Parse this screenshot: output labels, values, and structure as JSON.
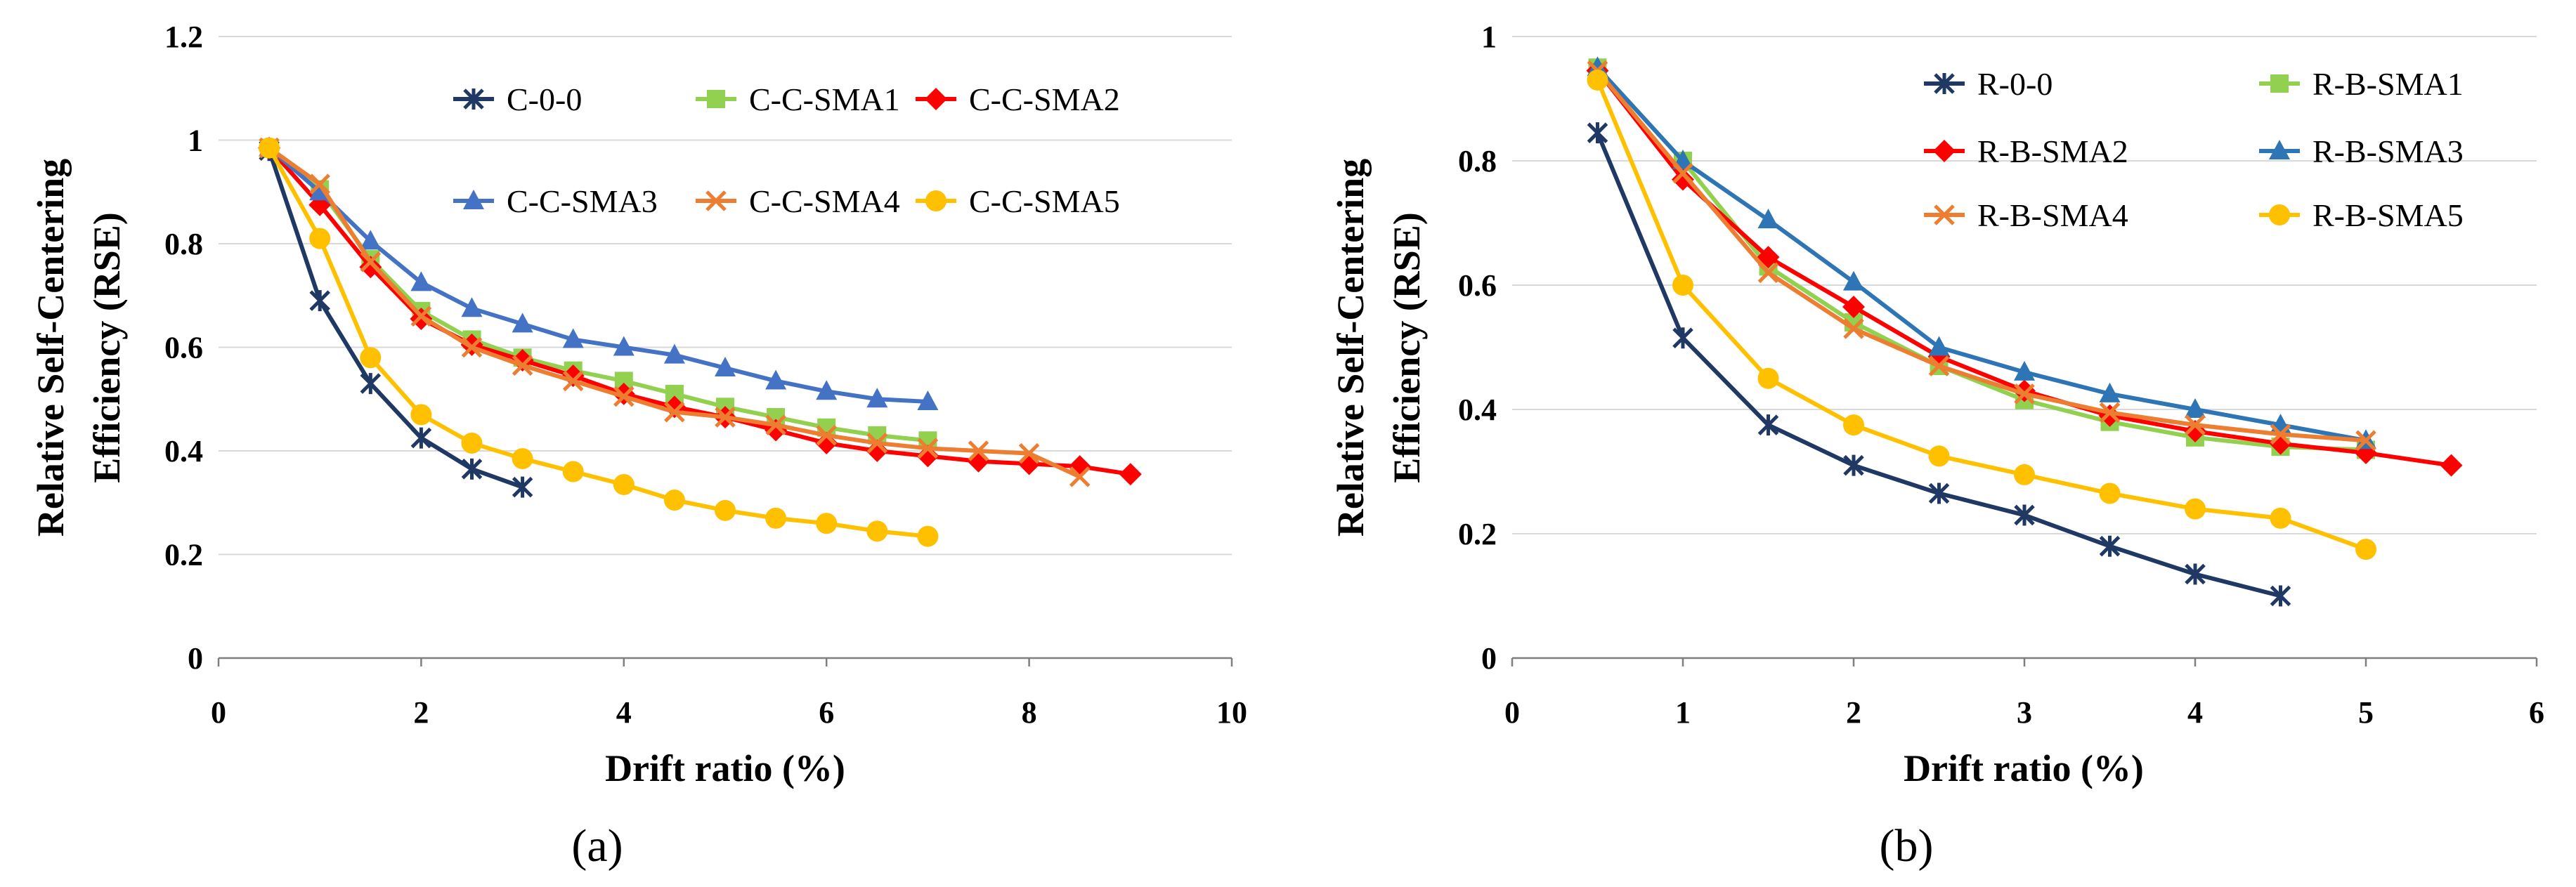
{
  "chart_data": [
    {
      "type": "line",
      "panel_label": "(a)",
      "xlabel": "Drift ratio (%)",
      "ylabel_line1": "Relative Self-Centering",
      "ylabel_line2": "Efficiency (RSE)",
      "xlim": [
        0,
        10
      ],
      "ylim": [
        0,
        1.2
      ],
      "xticks": [
        "0",
        "2",
        "4",
        "6",
        "8",
        "10"
      ],
      "yticks": [
        "0",
        "0.2",
        "0.4",
        "0.6",
        "0.8",
        "1",
        "1.2"
      ],
      "grid": "horizontal",
      "legend": "top-right",
      "series": [
        {
          "name": "C-0-0",
          "color": "#1f3864",
          "marker": "star",
          "x": [
            0.5,
            1,
            1.5,
            2,
            2.5,
            3
          ],
          "y": [
            0.98,
            0.69,
            0.53,
            0.425,
            0.365,
            0.33
          ]
        },
        {
          "name": "C-C-SMA1",
          "color": "#92d050",
          "marker": "square",
          "x": [
            0.5,
            1,
            1.5,
            2,
            2.5,
            3,
            3.5,
            4,
            4.5,
            5,
            5.5,
            6,
            6.5,
            7
          ],
          "y": [
            0.985,
            0.905,
            0.77,
            0.67,
            0.615,
            0.58,
            0.555,
            0.535,
            0.51,
            0.485,
            0.465,
            0.445,
            0.43,
            0.42
          ]
        },
        {
          "name": "C-C-SMA2",
          "color": "#ff0000",
          "marker": "diamond",
          "x": [
            0.5,
            1,
            1.5,
            2,
            2.5,
            3,
            3.5,
            4,
            4.5,
            5,
            5.5,
            6,
            6.5,
            7,
            7.5,
            8,
            8.5,
            9
          ],
          "y": [
            0.985,
            0.875,
            0.755,
            0.655,
            0.605,
            0.575,
            0.545,
            0.51,
            0.485,
            0.465,
            0.44,
            0.415,
            0.4,
            0.39,
            0.38,
            0.375,
            0.37,
            0.355
          ]
        },
        {
          "name": "C-C-SMA3",
          "color": "#4472c4",
          "marker": "triangle",
          "x": [
            0.5,
            1,
            1.5,
            2,
            2.5,
            3,
            3.5,
            4,
            4.5,
            5,
            5.5,
            6,
            6.5,
            7
          ],
          "y": [
            0.985,
            0.9,
            0.805,
            0.725,
            0.675,
            0.645,
            0.615,
            0.6,
            0.585,
            0.56,
            0.535,
            0.515,
            0.5,
            0.495
          ]
        },
        {
          "name": "C-C-SMA4",
          "color": "#ed7d31",
          "marker": "x",
          "x": [
            0.5,
            1,
            1.5,
            2,
            2.5,
            3,
            3.5,
            4,
            4.5,
            5,
            5.5,
            6,
            6.5,
            7,
            7.5,
            8,
            8.5
          ],
          "y": [
            0.985,
            0.915,
            0.765,
            0.66,
            0.6,
            0.565,
            0.535,
            0.505,
            0.475,
            0.465,
            0.45,
            0.43,
            0.415,
            0.405,
            0.4,
            0.395,
            0.35
          ]
        },
        {
          "name": "C-C-SMA5",
          "color": "#ffc000",
          "marker": "circle",
          "x": [
            0.5,
            1,
            1.5,
            2,
            2.5,
            3,
            3.5,
            4,
            4.5,
            5,
            5.5,
            6,
            6.5,
            7
          ],
          "y": [
            0.985,
            0.81,
            0.58,
            0.47,
            0.415,
            0.385,
            0.36,
            0.335,
            0.305,
            0.285,
            0.27,
            0.26,
            0.245,
            0.235
          ]
        }
      ]
    },
    {
      "type": "line",
      "panel_label": "(b)",
      "xlabel": "Drift ratio (%)",
      "ylabel_line1": "Relative Self-Centering",
      "ylabel_line2": "Efficiency (RSE)",
      "xlim": [
        0,
        6
      ],
      "ylim": [
        0,
        1
      ],
      "xticks": [
        "0",
        "1",
        "2",
        "3",
        "4",
        "5",
        "6"
      ],
      "yticks": [
        "0",
        "0.2",
        "0.4",
        "0.6",
        "0.8",
        "1"
      ],
      "grid": "horizontal",
      "legend": "top-right",
      "series": [
        {
          "name": "R-0-0",
          "color": "#1f3864",
          "marker": "star",
          "x": [
            0.5,
            1,
            1.5,
            2,
            2.5,
            3,
            3.5,
            4,
            4.5
          ],
          "y": [
            0.845,
            0.515,
            0.375,
            0.31,
            0.265,
            0.23,
            0.18,
            0.135,
            0.1
          ]
        },
        {
          "name": "R-B-SMA1",
          "color": "#92d050",
          "marker": "square",
          "x": [
            0.5,
            1,
            1.5,
            2,
            2.5,
            3,
            3.5,
            4,
            4.5,
            5
          ],
          "y": [
            0.95,
            0.8,
            0.63,
            0.54,
            0.47,
            0.415,
            0.38,
            0.355,
            0.34,
            0.335
          ]
        },
        {
          "name": "R-B-SMA2",
          "color": "#ff0000",
          "marker": "diamond",
          "x": [
            0.5,
            1,
            1.5,
            2,
            2.5,
            3,
            3.5,
            4,
            4.5,
            5,
            5.5
          ],
          "y": [
            0.945,
            0.77,
            0.645,
            0.565,
            0.485,
            0.43,
            0.39,
            0.365,
            0.345,
            0.33,
            0.31
          ]
        },
        {
          "name": "R-B-SMA3",
          "color": "#2e75b6",
          "marker": "triangle",
          "x": [
            0.5,
            1,
            1.5,
            2,
            2.5,
            3,
            3.5,
            4,
            4.5,
            5
          ],
          "y": [
            0.95,
            0.8,
            0.705,
            0.605,
            0.5,
            0.46,
            0.425,
            0.4,
            0.375,
            0.35
          ]
        },
        {
          "name": "R-B-SMA4",
          "color": "#ed7d31",
          "marker": "x",
          "x": [
            0.5,
            1,
            1.5,
            2,
            2.5,
            3,
            3.5,
            4,
            4.5,
            5
          ],
          "y": [
            0.945,
            0.78,
            0.62,
            0.53,
            0.47,
            0.425,
            0.395,
            0.375,
            0.36,
            0.35
          ]
        },
        {
          "name": "R-B-SMA5",
          "color": "#ffc000",
          "marker": "circle",
          "x": [
            0.5,
            1,
            1.5,
            2,
            2.5,
            3,
            3.5,
            4,
            4.5,
            5
          ],
          "y": [
            0.93,
            0.6,
            0.45,
            0.375,
            0.325,
            0.295,
            0.265,
            0.24,
            0.225,
            0.175
          ]
        }
      ]
    }
  ]
}
